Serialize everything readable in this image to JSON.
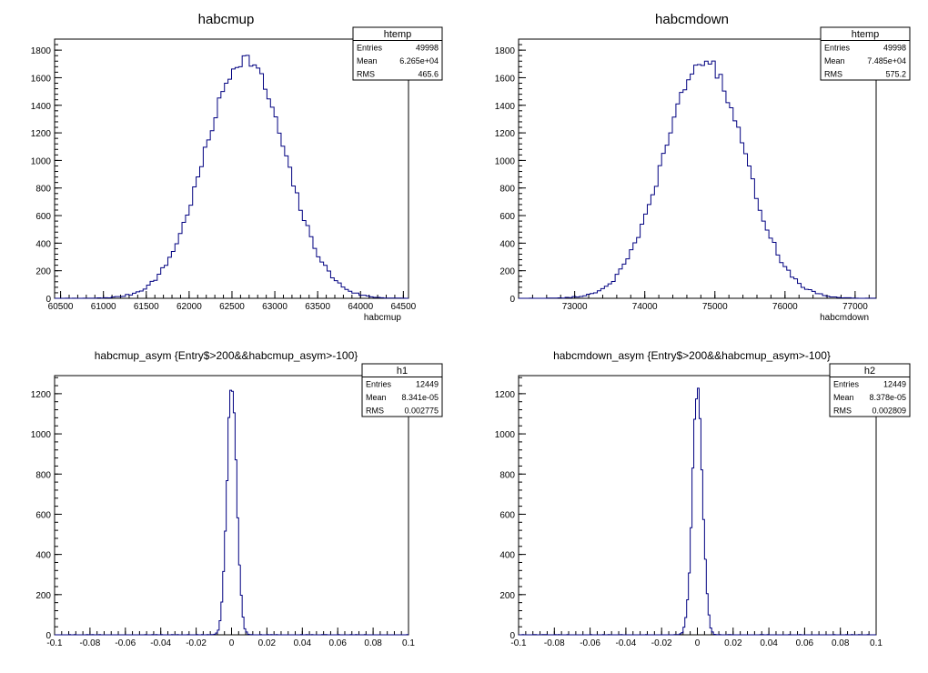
{
  "chart_data": [
    {
      "type": "histogram",
      "title": "habcmup",
      "xlabel": "habcmup",
      "ylabel": "",
      "xlim": [
        60430,
        64560
      ],
      "ylim": [
        0,
        1880
      ],
      "xticks": [
        60500,
        61000,
        61500,
        62000,
        62500,
        63000,
        63500,
        64000,
        64500
      ],
      "yticks": [
        0,
        200,
        400,
        600,
        800,
        1000,
        1200,
        1400,
        1600,
        1800
      ],
      "gaussian": {
        "mean": 62650,
        "sigma": 465.6,
        "peak": 1740
      },
      "stats": {
        "name": "htemp",
        "rows": [
          {
            "label": "Entries",
            "value": "49998"
          },
          {
            "label": "Mean",
            "value": "6.265e+04"
          },
          {
            "label": "RMS",
            "value": "465.6"
          }
        ]
      }
    },
    {
      "type": "histogram",
      "title": "habcmdown",
      "xlabel": "habcmdown",
      "ylabel": "",
      "xlim": [
        72200,
        77300
      ],
      "ylim": [
        0,
        1880
      ],
      "xticks": [
        73000,
        74000,
        75000,
        76000,
        77000
      ],
      "yticks": [
        0,
        200,
        400,
        600,
        800,
        1000,
        1200,
        1400,
        1600,
        1800
      ],
      "gaussian": {
        "mean": 74850,
        "sigma": 575.2,
        "peak": 1720
      },
      "stats": {
        "name": "htemp",
        "rows": [
          {
            "label": "Entries",
            "value": "49998"
          },
          {
            "label": "Mean",
            "value": "7.485e+04"
          },
          {
            "label": "RMS",
            "value": "575.2"
          }
        ]
      }
    },
    {
      "type": "histogram",
      "title": "habcmup_asym {Entry$>200&&habcmup_asym>-100}",
      "xlabel": "",
      "ylabel": "",
      "xlim": [
        -0.1,
        0.1
      ],
      "ylim": [
        0,
        1290
      ],
      "xticks": [
        -0.1,
        -0.08,
        -0.06,
        -0.04,
        -0.02,
        0,
        0.02,
        0.04,
        0.06,
        0.08,
        0.1
      ],
      "yticks": [
        0,
        200,
        400,
        600,
        800,
        1000,
        1200
      ],
      "gaussian": {
        "mean": 8.341e-05,
        "sigma": 0.002775,
        "peak": 1230
      },
      "stats": {
        "name": "h1",
        "rows": [
          {
            "label": "Entries",
            "value": "12449"
          },
          {
            "label": "Mean",
            "value": "8.341e-05"
          },
          {
            "label": "RMS",
            "value": "0.002775"
          }
        ]
      }
    },
    {
      "type": "histogram",
      "title": "habcmdown_asym {Entry$>200&&habcmup_asym>-100}",
      "xlabel": "",
      "ylabel": "",
      "xlim": [
        -0.1,
        0.1
      ],
      "ylim": [
        0,
        1290
      ],
      "xticks": [
        -0.1,
        -0.08,
        -0.06,
        -0.04,
        -0.02,
        0,
        0.02,
        0.04,
        0.06,
        0.08,
        0.1
      ],
      "yticks": [
        0,
        200,
        400,
        600,
        800,
        1000,
        1200
      ],
      "gaussian": {
        "mean": 8.378e-05,
        "sigma": 0.002809,
        "peak": 1230
      },
      "stats": {
        "name": "h2",
        "rows": [
          {
            "label": "Entries",
            "value": "12449"
          },
          {
            "label": "Mean",
            "value": "8.378e-05"
          },
          {
            "label": "RMS",
            "value": "0.002809"
          }
        ]
      }
    }
  ],
  "colors": {
    "histogram_line": "#000080",
    "frame": "#000000",
    "background": "#ffffff"
  }
}
